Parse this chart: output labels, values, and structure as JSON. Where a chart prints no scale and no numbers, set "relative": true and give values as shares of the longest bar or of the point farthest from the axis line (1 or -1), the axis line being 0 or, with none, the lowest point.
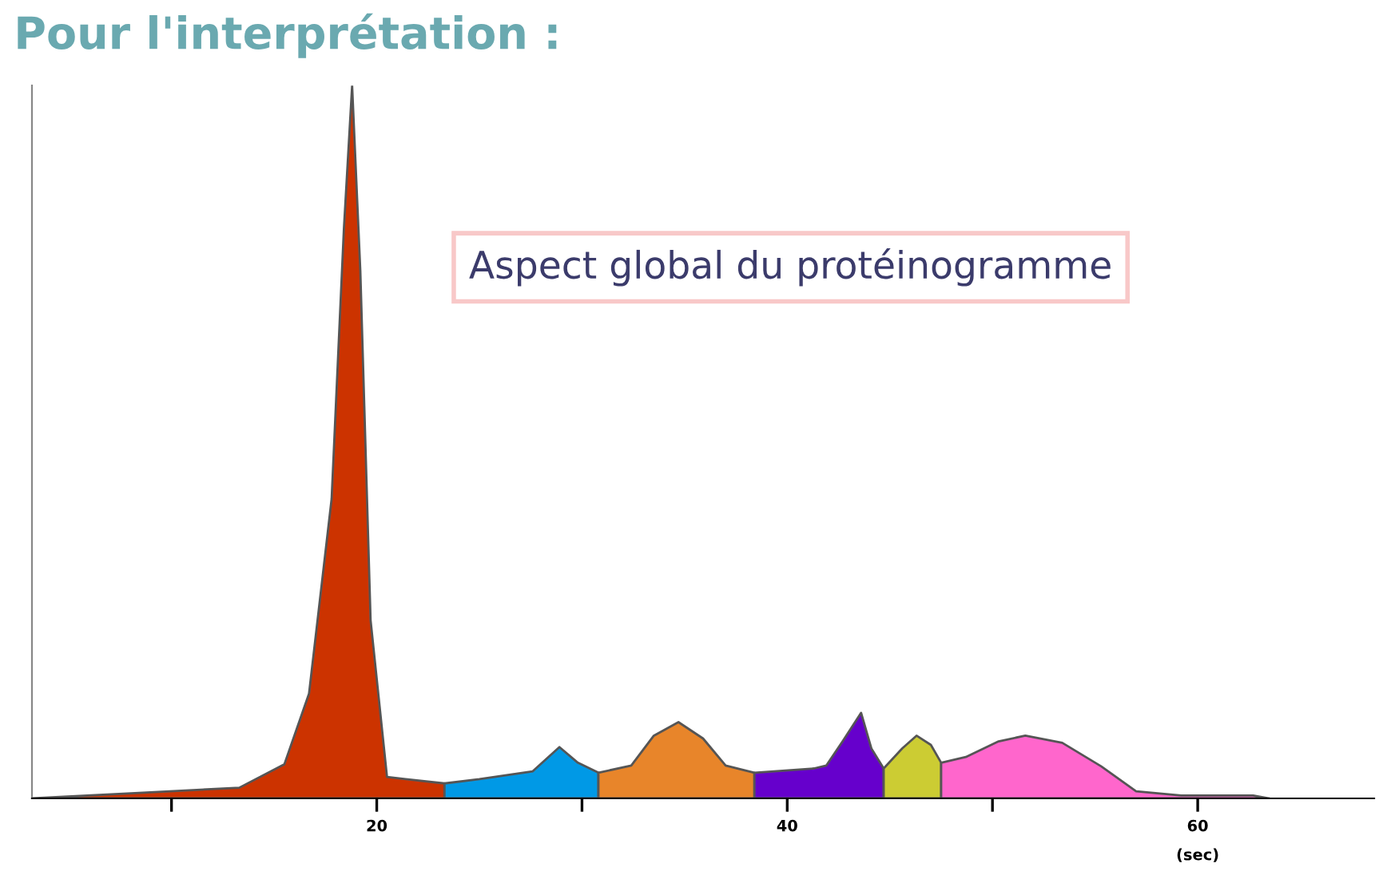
{
  "chart_data": {
    "type": "area",
    "title": "Pour l'interprétation :",
    "xlabel": "(sec)",
    "relative": true,
    "annotations": [
      "Aspect global du protéinogramme"
    ],
    "xlim": [
      3.2,
      68.6
    ],
    "xticks": [
      {
        "value": 10,
        "label": null
      },
      20,
      {
        "value": 30,
        "label": null
      },
      40,
      {
        "value": 50,
        "label": null
      },
      60
    ],
    "grid": false,
    "legend": false,
    "series": [
      {
        "color": "#cc3300",
        "x": [
          3.2,
          8.6,
          13.3,
          15.5,
          16.7,
          17.8,
          18.4,
          18.8,
          19.2,
          19.7,
          20.5,
          23.3
        ],
        "values": [
          0,
          0.008,
          0.015,
          0.048,
          0.147,
          0.42,
          0.8,
          1,
          0.74,
          0.25,
          0.03,
          0.021
        ]
      },
      {
        "color": "#0099e6",
        "x": [
          23.3,
          25.0,
          27.6,
          28.9,
          29.8,
          30.8
        ],
        "values": [
          0.021,
          0.027,
          0.038,
          0.072,
          0.05,
          0.036
        ]
      },
      {
        "color": "#e8852a",
        "x": [
          30.8,
          32.4,
          33.5,
          34.7,
          35.9,
          37.0,
          38.4
        ],
        "values": [
          0.036,
          0.046,
          0.088,
          0.107,
          0.084,
          0.046,
          0.036
        ]
      },
      {
        "color": "#6600cc",
        "x": [
          38.4,
          41.3,
          41.9,
          42.7,
          43.6,
          44.1,
          44.7
        ],
        "values": [
          0.036,
          0.042,
          0.046,
          0.08,
          0.12,
          0.07,
          0.042
        ]
      },
      {
        "color": "#cccc33",
        "x": [
          44.7,
          45.6,
          46.3,
          47.0,
          47.5
        ],
        "values": [
          0.042,
          0.07,
          0.088,
          0.075,
          0.05
        ]
      },
      {
        "color": "#ff66cc",
        "x": [
          47.5,
          48.7,
          50.3,
          51.6,
          53.4,
          55.3,
          57.0,
          59.2,
          62.7,
          63.5
        ],
        "values": [
          0.05,
          0.058,
          0.08,
          0.088,
          0.078,
          0.045,
          0.01,
          0.004,
          0.004,
          0
        ]
      }
    ]
  }
}
